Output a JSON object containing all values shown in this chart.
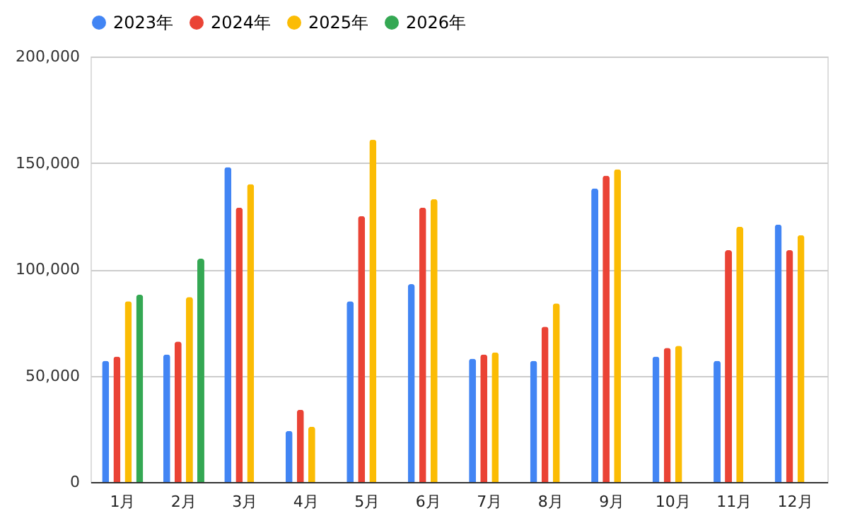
{
  "chart_data": {
    "type": "bar",
    "categories": [
      "1月",
      "2月",
      "3月",
      "4月",
      "5月",
      "6月",
      "7月",
      "8月",
      "9月",
      "10月",
      "11月",
      "12月"
    ],
    "series": [
      {
        "name": "2023年",
        "color": "#4285f4",
        "values": [
          57000,
          60000,
          148000,
          24000,
          85000,
          93000,
          58000,
          57000,
          138000,
          59000,
          57000,
          121000
        ]
      },
      {
        "name": "2024年",
        "color": "#ea4335",
        "values": [
          59000,
          66000,
          129000,
          34000,
          125000,
          129000,
          60000,
          73000,
          144000,
          63000,
          109000,
          109000
        ]
      },
      {
        "name": "2025年",
        "color": "#fbbc04",
        "values": [
          85000,
          87000,
          140000,
          26000,
          161000,
          133000,
          61000,
          84000,
          147000,
          64000,
          120000,
          116000
        ]
      },
      {
        "name": "2026年",
        "color": "#34a853",
        "values": [
          88000,
          105000,
          null,
          null,
          null,
          null,
          null,
          null,
          null,
          null,
          null,
          null
        ]
      }
    ],
    "ylim": [
      0,
      200000
    ],
    "yticks": [
      0,
      {
        "value": 50000,
        "label": "50,000"
      },
      {
        "value": 100000,
        "label": "100,000"
      },
      {
        "value": 150000,
        "label": "150,000"
      },
      {
        "value": 200000,
        "label": "200,000"
      }
    ],
    "grid": "y",
    "legend": "top"
  }
}
